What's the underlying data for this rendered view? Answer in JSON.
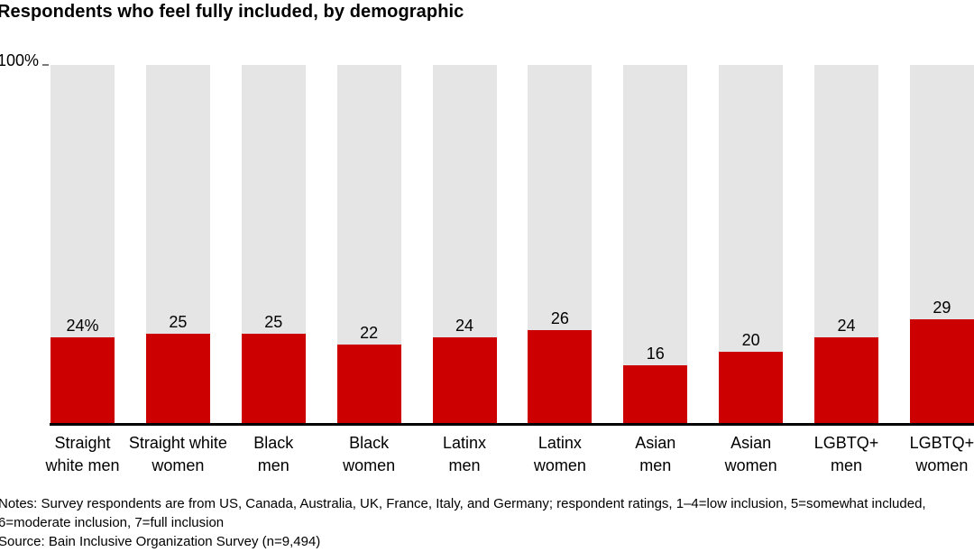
{
  "title": "Respondents who feel fully included, by demographic",
  "chart_data": {
    "type": "bar",
    "title": "Respondents who feel fully included, by demographic",
    "categories": [
      "Straight white men",
      "Straight white women",
      "Black men",
      "Black women",
      "Latinx men",
      "Latinx women",
      "Asian men",
      "Asian women",
      "LGBTQ+ men",
      "LGBTQ+ women"
    ],
    "category_lines": [
      [
        "Straight",
        "white men"
      ],
      [
        "Straight white",
        "women"
      ],
      [
        "Black",
        "men"
      ],
      [
        "Black",
        "women"
      ],
      [
        "Latinx",
        "men"
      ],
      [
        "Latinx",
        "women"
      ],
      [
        "Asian",
        "men"
      ],
      [
        "Asian",
        "women"
      ],
      [
        "LGBTQ+",
        "men"
      ],
      [
        "LGBTQ+",
        "women"
      ]
    ],
    "values": [
      24,
      25,
      25,
      22,
      24,
      26,
      16,
      20,
      24,
      29
    ],
    "value_labels": [
      "24%",
      "25",
      "25",
      "22",
      "24",
      "26",
      "16",
      "20",
      "24",
      "29"
    ],
    "xlabel": "",
    "ylabel": "",
    "y_axis_tick_label": "100%",
    "ylim": [
      0,
      100
    ],
    "grid": false,
    "legend": false,
    "bar_color": "#cc0000",
    "track_color": "#e5e5e5",
    "axis_color": "#000000"
  },
  "footer": {
    "notes_line1": "Notes: Survey respondents are from US, Canada, Australia, UK, France, Italy, and Germany; respondent ratings, 1–4=low inclusion, 5=somewhat included,",
    "notes_line2": "6=moderate inclusion, 7=full inclusion",
    "source": "Source: Bain Inclusive Organization Survey (n=9,494)"
  }
}
